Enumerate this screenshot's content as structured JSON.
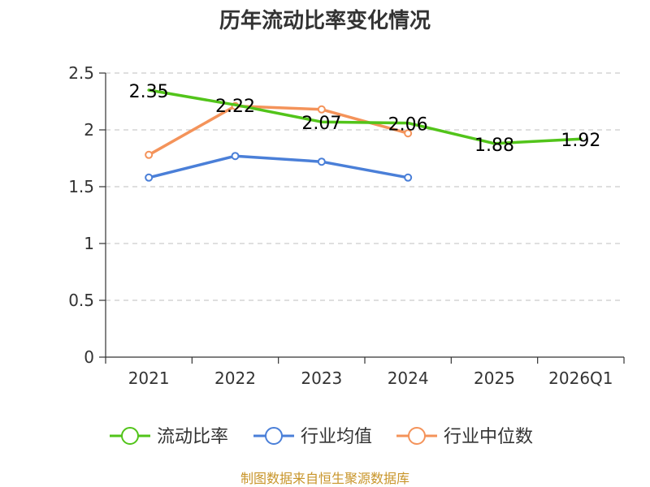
{
  "chart_data": {
    "type": "line",
    "title": "历年流动比率变化情况",
    "categories": [
      "2021",
      "2022",
      "2023",
      "2024",
      "2025",
      "2026Q1"
    ],
    "ylim": [
      0,
      2.5
    ],
    "yticks": [
      "0",
      "0.5",
      "1",
      "1.5",
      "2",
      "2.5"
    ],
    "grid": true,
    "legend_position": "bottom",
    "series": [
      {
        "name": "流动比率",
        "color": "#52c41a",
        "values": [
          2.35,
          2.22,
          2.07,
          2.06,
          1.88,
          1.92
        ],
        "labels": [
          "2.35",
          "2.22",
          "2.07",
          "2.06",
          "1.88",
          "1.92"
        ],
        "show_markers": false
      },
      {
        "name": "行业均值",
        "color": "#4a7fd8",
        "values": [
          1.58,
          1.77,
          1.72,
          1.58,
          null,
          null
        ],
        "show_markers": true
      },
      {
        "name": "行业中位数",
        "color": "#f4935a",
        "values": [
          1.78,
          2.21,
          2.18,
          1.97,
          null,
          null
        ],
        "show_markers": true
      }
    ],
    "source": "制图数据来自恒生聚源数据库",
    "source_color": "#c8952a"
  }
}
